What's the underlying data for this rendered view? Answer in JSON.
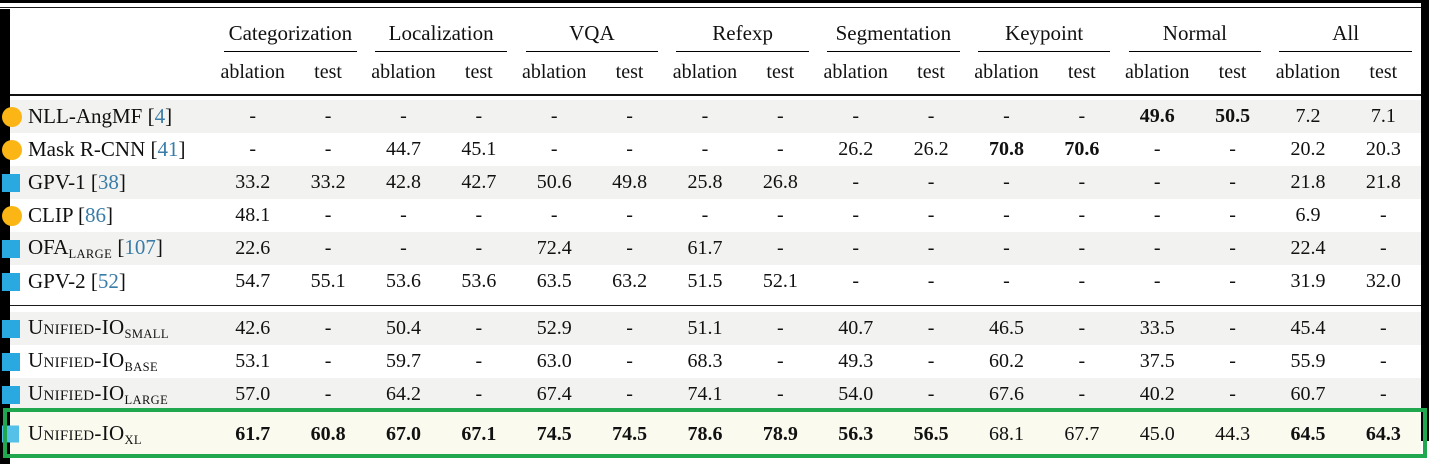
{
  "colors": {
    "marker_orange": "#fbb615",
    "marker_blue": "#2aa9e0",
    "marker_lightblue": "#55c1e9",
    "highlight_green": "#21a74e",
    "row_shade": "#f2f2f0",
    "highlight_row_bg": "#fafaef",
    "citation": "#3a7ca8"
  },
  "table": {
    "column_groups": [
      "Categorization",
      "Localization",
      "VQA",
      "Refexp",
      "Segmentation",
      "Keypoint",
      "Normal",
      "All"
    ],
    "sub_columns": [
      "ablation",
      "test"
    ],
    "rows": [
      {
        "marker": "circle-orange",
        "name": "NLL-AngMF",
        "cite": "4",
        "section": 1,
        "shade": true,
        "values": [
          "-",
          "-",
          "-",
          "-",
          "-",
          "-",
          "-",
          "-",
          "-",
          "-",
          "-",
          "-",
          "49.6",
          "50.5",
          "7.2",
          "7.1"
        ],
        "bold": [
          12,
          13
        ]
      },
      {
        "marker": "circle-orange",
        "name": "Mask R-CNN",
        "cite": "41",
        "section": 1,
        "shade": false,
        "values": [
          "-",
          "-",
          "44.7",
          "45.1",
          "-",
          "-",
          "-",
          "-",
          "26.2",
          "26.2",
          "70.8",
          "70.6",
          "-",
          "-",
          "20.2",
          "20.3"
        ],
        "bold": [
          10,
          11
        ]
      },
      {
        "marker": "square-blue",
        "name": "GPV-1",
        "cite": "38",
        "section": 1,
        "shade": true,
        "values": [
          "33.2",
          "33.2",
          "42.8",
          "42.7",
          "50.6",
          "49.8",
          "25.8",
          "26.8",
          "-",
          "-",
          "-",
          "-",
          "-",
          "-",
          "21.8",
          "21.8"
        ],
        "bold": []
      },
      {
        "marker": "circle-orange",
        "name": "CLIP",
        "cite": "86",
        "section": 1,
        "shade": false,
        "values": [
          "48.1",
          "-",
          "-",
          "-",
          "-",
          "-",
          "-",
          "-",
          "-",
          "-",
          "-",
          "-",
          "-",
          "-",
          "6.9",
          "-"
        ],
        "bold": []
      },
      {
        "marker": "square-blue",
        "name": "OFA",
        "sub": "LARGE",
        "cite": "107",
        "section": 1,
        "shade": true,
        "values": [
          "22.6",
          "-",
          "-",
          "-",
          "72.4",
          "-",
          "61.7",
          "-",
          "-",
          "-",
          "-",
          "-",
          "-",
          "-",
          "22.4",
          "-"
        ],
        "bold": []
      },
      {
        "marker": "square-blue",
        "name": "GPV-2",
        "cite": "52",
        "section": 1,
        "shade": false,
        "values": [
          "54.7",
          "55.1",
          "53.6",
          "53.6",
          "63.5",
          "63.2",
          "51.5",
          "52.1",
          "-",
          "-",
          "-",
          "-",
          "-",
          "-",
          "31.9",
          "32.0"
        ],
        "bold": []
      },
      {
        "marker": "square-blue",
        "name": "Unified-IO",
        "smallcaps": true,
        "sub": "SMALL",
        "section": 2,
        "shade": true,
        "values": [
          "42.6",
          "-",
          "50.4",
          "-",
          "52.9",
          "-",
          "51.1",
          "-",
          "40.7",
          "-",
          "46.5",
          "-",
          "33.5",
          "-",
          "45.4",
          "-"
        ],
        "bold": []
      },
      {
        "marker": "square-blue",
        "name": "Unified-IO",
        "smallcaps": true,
        "sub": "BASE",
        "section": 2,
        "shade": false,
        "values": [
          "53.1",
          "-",
          "59.7",
          "-",
          "63.0",
          "-",
          "68.3",
          "-",
          "49.3",
          "-",
          "60.2",
          "-",
          "37.5",
          "-",
          "55.9",
          "-"
        ],
        "bold": []
      },
      {
        "marker": "square-blue",
        "name": "Unified-IO",
        "smallcaps": true,
        "sub": "LARGE",
        "section": 2,
        "shade": true,
        "values": [
          "57.0",
          "-",
          "64.2",
          "-",
          "67.4",
          "-",
          "74.1",
          "-",
          "54.0",
          "-",
          "67.6",
          "-",
          "40.2",
          "-",
          "60.7",
          "-"
        ],
        "bold": []
      },
      {
        "marker": "square-lightblue",
        "name": "Unified-IO",
        "smallcaps": true,
        "sub": "XL",
        "section": 2,
        "highlight": true,
        "values": [
          "61.7",
          "60.8",
          "67.0",
          "67.1",
          "74.5",
          "74.5",
          "78.6",
          "78.9",
          "56.3",
          "56.5",
          "68.1",
          "67.7",
          "45.0",
          "44.3",
          "64.5",
          "64.3"
        ],
        "bold": [
          0,
          1,
          2,
          3,
          4,
          5,
          6,
          7,
          8,
          9,
          14,
          15
        ]
      }
    ]
  }
}
